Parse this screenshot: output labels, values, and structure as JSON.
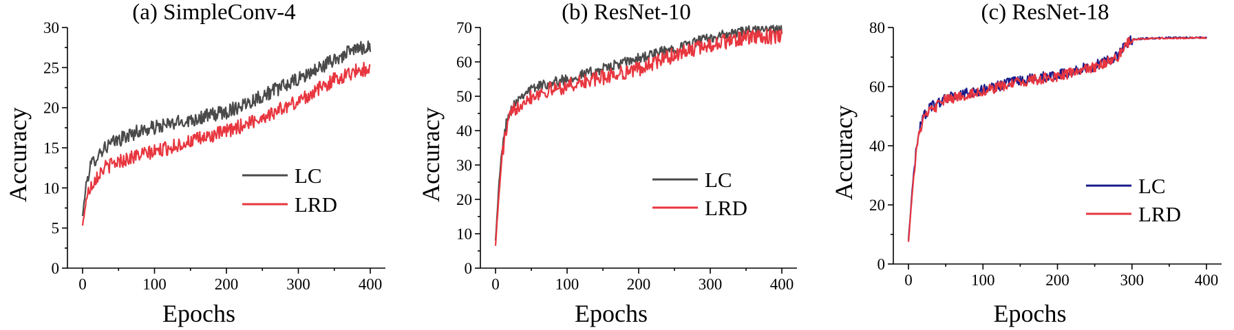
{
  "chart_data": [
    {
      "type": "line",
      "title": "(a) SimpleConv-4",
      "xlabel": "Epochs",
      "ylabel": "Accuracy",
      "xlim": [
        0,
        400
      ],
      "ylim": [
        0,
        30
      ],
      "xticks": [
        0,
        100,
        200,
        300,
        400
      ],
      "yticks": [
        0,
        5,
        10,
        15,
        20,
        25,
        30
      ],
      "legend": "center-right",
      "series": [
        {
          "name": "LC",
          "color": "#4a4a4a",
          "noise": 0.9,
          "x": [
            0,
            5,
            10,
            20,
            30,
            50,
            75,
            100,
            150,
            200,
            250,
            300,
            350,
            380,
            400
          ],
          "y": [
            6.5,
            10.5,
            12.5,
            14.0,
            15.0,
            16.0,
            17.0,
            17.5,
            18.5,
            19.5,
            21.5,
            23.5,
            26.0,
            27.3,
            27.7
          ]
        },
        {
          "name": "LRD",
          "color": "#e8363f",
          "noise": 0.9,
          "x": [
            0,
            5,
            10,
            20,
            30,
            50,
            75,
            100,
            150,
            200,
            250,
            300,
            350,
            380,
            400
          ],
          "y": [
            5.3,
            8.5,
            10.0,
            11.5,
            12.5,
            13.3,
            14.0,
            14.5,
            15.8,
            17.0,
            18.8,
            20.8,
            23.5,
            24.6,
            24.9
          ]
        }
      ]
    },
    {
      "type": "line",
      "title": "(b) ResNet-10",
      "xlabel": "Epochs",
      "ylabel": "Accuracy",
      "xlim": [
        0,
        400
      ],
      "ylim": [
        0,
        70
      ],
      "xticks": [
        0,
        100,
        200,
        300,
        400
      ],
      "yticks": [
        0,
        10,
        20,
        30,
        40,
        50,
        60,
        70
      ],
      "legend": "lower-right",
      "series": [
        {
          "name": "LC",
          "color": "#4a4a4a",
          "noise": 1.5,
          "x": [
            0,
            5,
            10,
            15,
            20,
            30,
            40,
            60,
            100,
            150,
            200,
            250,
            300,
            350,
            400
          ],
          "y": [
            8,
            25,
            36,
            42,
            46,
            49,
            51,
            53,
            55,
            58,
            61,
            64,
            67,
            69,
            69.5
          ]
        },
        {
          "name": "LRD",
          "color": "#e8363f",
          "noise": 2.2,
          "x": [
            0,
            5,
            10,
            15,
            20,
            30,
            40,
            60,
            100,
            150,
            200,
            250,
            300,
            350,
            400
          ],
          "y": [
            6.5,
            22,
            34,
            40,
            44,
            47,
            49,
            51,
            53,
            55.5,
            58,
            62,
            65,
            67,
            67.5
          ]
        }
      ]
    },
    {
      "type": "line",
      "title": "(c) ResNet-18",
      "xlabel": "Epochs",
      "ylabel": "Accuracy",
      "xlim": [
        0,
        400
      ],
      "ylim": [
        0,
        80
      ],
      "xticks": [
        0,
        100,
        200,
        300,
        400
      ],
      "yticks": [
        0,
        20,
        40,
        60,
        80
      ],
      "legend": "lower-right",
      "series": [
        {
          "name": "LC",
          "color": "#1a1a8a",
          "noise": 1.8,
          "x": [
            0,
            5,
            10,
            15,
            20,
            30,
            50,
            100,
            150,
            200,
            250,
            280,
            290,
            300,
            320,
            350,
            400
          ],
          "y": [
            8,
            25,
            38,
            46,
            50,
            53,
            56,
            59,
            62,
            64,
            67,
            70,
            74,
            76,
            76.3,
            76.5,
            76.6
          ]
        },
        {
          "name": "LRD",
          "color": "#e8363f",
          "noise": 1.8,
          "x": [
            0,
            5,
            10,
            15,
            20,
            30,
            50,
            100,
            150,
            200,
            250,
            280,
            290,
            300,
            320,
            350,
            400
          ],
          "y": [
            7.5,
            24,
            37,
            45,
            49,
            52,
            55.5,
            58.5,
            61.5,
            63.5,
            66.5,
            69.5,
            74,
            76,
            76.2,
            76.4,
            76.5
          ]
        }
      ]
    }
  ]
}
